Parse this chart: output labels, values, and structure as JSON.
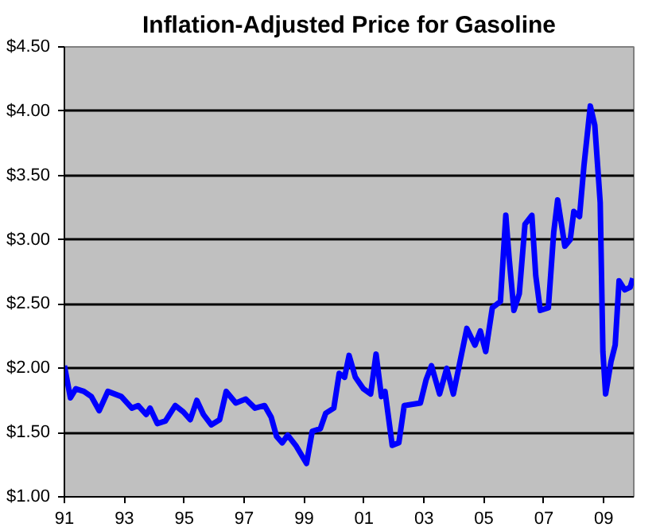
{
  "chart_data": {
    "type": "line",
    "title": "Inflation-Adjusted Price for Gasoline",
    "x": [
      1991.0,
      1991.2,
      1991.38,
      1991.65,
      1991.9,
      1992.16,
      1992.45,
      1992.9,
      1993.25,
      1993.46,
      1993.73,
      1993.86,
      1994.1,
      1994.37,
      1994.7,
      1994.97,
      1995.2,
      1995.42,
      1995.64,
      1995.9,
      1996.18,
      1996.4,
      1996.72,
      1997.05,
      1997.36,
      1997.68,
      1997.9,
      1998.08,
      1998.27,
      1998.45,
      1998.72,
      1999.08,
      1999.27,
      1999.54,
      1999.72,
      1999.99,
      2000.17,
      2000.35,
      2000.5,
      2000.71,
      2000.98,
      2001.22,
      2001.4,
      2001.58,
      2001.7,
      2001.94,
      2002.16,
      2002.34,
      2002.88,
      2003.07,
      2003.25,
      2003.52,
      2003.76,
      2003.98,
      2004.2,
      2004.43,
      2004.7,
      2004.88,
      2005.06,
      2005.28,
      2005.55,
      2005.73,
      2005.84,
      2006.0,
      2006.18,
      2006.37,
      2006.6,
      2006.73,
      2006.88,
      2007.15,
      2007.33,
      2007.46,
      2007.7,
      2007.88,
      2008.0,
      2008.19,
      2008.34,
      2008.55,
      2008.7,
      2008.88,
      2008.97,
      2009.06,
      2009.24,
      2009.38,
      2009.51,
      2009.7,
      2009.88,
      2009.97
    ],
    "series": [
      {
        "color": "#0000ff",
        "values": [
          2.02,
          1.77,
          1.84,
          1.82,
          1.78,
          1.67,
          1.82,
          1.78,
          1.69,
          1.71,
          1.64,
          1.69,
          1.57,
          1.59,
          1.71,
          1.66,
          1.6,
          1.75,
          1.64,
          1.56,
          1.6,
          1.82,
          1.73,
          1.76,
          1.69,
          1.71,
          1.62,
          1.47,
          1.42,
          1.48,
          1.4,
          1.26,
          1.51,
          1.53,
          1.65,
          1.69,
          1.96,
          1.93,
          2.1,
          1.93,
          1.84,
          1.8,
          2.11,
          1.78,
          1.82,
          1.4,
          1.42,
          1.71,
          1.73,
          1.91,
          2.02,
          1.8,
          2.0,
          1.8,
          2.05,
          2.31,
          2.18,
          2.29,
          2.13,
          2.47,
          2.52,
          3.19,
          2.86,
          2.45,
          2.58,
          3.12,
          3.19,
          2.72,
          2.45,
          2.47,
          3.06,
          3.31,
          2.95,
          3.0,
          3.22,
          3.18,
          3.58,
          4.04,
          3.89,
          3.29,
          2.13,
          1.8,
          2.05,
          2.18,
          2.68,
          2.61,
          2.63,
          2.7
        ]
      }
    ],
    "xlim": [
      1991,
      2010
    ],
    "xticks": [
      {
        "value": 1991,
        "label": "91"
      },
      {
        "value": 1993,
        "label": "93"
      },
      {
        "value": 1995,
        "label": "95"
      },
      {
        "value": 1997,
        "label": "97"
      },
      {
        "value": 1999,
        "label": "99"
      },
      {
        "value": 2001,
        "label": "01"
      },
      {
        "value": 2003,
        "label": "03"
      },
      {
        "value": 2005,
        "label": "05"
      },
      {
        "value": 2007,
        "label": "07"
      },
      {
        "value": 2009,
        "label": "09"
      }
    ],
    "ylim": [
      1.0,
      4.5
    ],
    "yticks": [
      {
        "value": 1.0,
        "label": "$1.00"
      },
      {
        "value": 1.5,
        "label": "$1.50"
      },
      {
        "value": 2.0,
        "label": "$2.00"
      },
      {
        "value": 2.5,
        "label": "$2.50"
      },
      {
        "value": 3.0,
        "label": "$3.00"
      },
      {
        "value": 3.5,
        "label": "$3.50"
      },
      {
        "value": 4.0,
        "label": "$4.00"
      },
      {
        "value": 4.5,
        "label": "$4.50"
      }
    ],
    "grid": "y",
    "marker": "none",
    "line_style": "solid"
  }
}
